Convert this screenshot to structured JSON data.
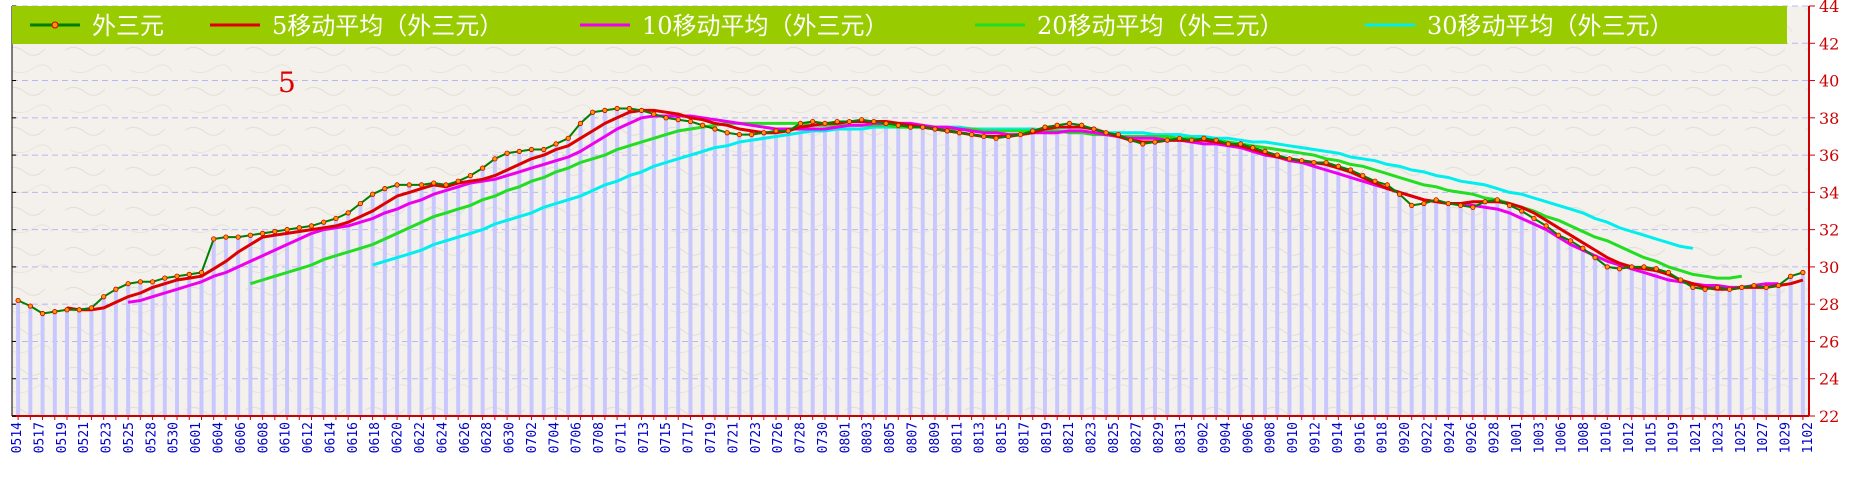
{
  "chart_data": {
    "type": "line",
    "title": "",
    "xlabel": "",
    "ylabel": "",
    "ylim": [
      22,
      44
    ],
    "y_ticks": [
      22,
      24,
      26,
      28,
      30,
      32,
      34,
      36,
      38,
      40,
      42,
      44
    ],
    "grid": true,
    "legend_position": "top",
    "annotation": "5",
    "colors": {
      "legend_bg": "#99cc00",
      "plot_bg": "#f4f1ec",
      "bar": "#c8c8ff",
      "axis": "#cc0000",
      "tick_x": "#0000cc",
      "grid": "#b8b8f0",
      "series": [
        "#008000",
        "#dd0000",
        "#ee00ee",
        "#22dd22",
        "#00eeee"
      ],
      "marker_fill": "#ff9900"
    },
    "x_tick_labels": [
      "0514",
      "0517",
      "0519",
      "0521",
      "0523",
      "0525",
      "0528",
      "0530",
      "0601",
      "0604",
      "0606",
      "0608",
      "0610",
      "0612",
      "0614",
      "0616",
      "0618",
      "0620",
      "0622",
      "0624",
      "0626",
      "0628",
      "0630",
      "0702",
      "0704",
      "0706",
      "0708",
      "0711",
      "0713",
      "0715",
      "0717",
      "0719",
      "0721",
      "0723",
      "0726",
      "0728",
      "0730",
      "0801",
      "0803",
      "0805",
      "0807",
      "0809",
      "0811",
      "0813",
      "0815",
      "0817",
      "0819",
      "0821",
      "0823",
      "0825",
      "0827",
      "0829",
      "0831",
      "0902",
      "0904",
      "0906",
      "0908",
      "0910",
      "0912",
      "0914",
      "0916",
      "0918",
      "0920",
      "0922",
      "0924",
      "0926",
      "0928",
      "1001",
      "1003",
      "1006",
      "1008",
      "1010",
      "1012",
      "1015",
      "1019",
      "1021",
      "1023",
      "1025",
      "1027",
      "1029",
      "1102"
    ],
    "series": [
      {
        "name": "外三元",
        "values": [
          28.2,
          27.9,
          27.5,
          27.6,
          27.7,
          27.7,
          27.8,
          28.4,
          28.8,
          29.1,
          29.2,
          29.2,
          29.4,
          29.5,
          29.6,
          29.7,
          31.5,
          31.6,
          31.6,
          31.7,
          31.8,
          31.9,
          32.0,
          32.1,
          32.2,
          32.4,
          32.6,
          32.9,
          33.4,
          33.9,
          34.2,
          34.4,
          34.4,
          34.4,
          34.5,
          34.4,
          34.6,
          34.9,
          35.3,
          35.8,
          36.1,
          36.2,
          36.3,
          36.3,
          36.6,
          36.9,
          37.7,
          38.3,
          38.4,
          38.5,
          38.5,
          38.4,
          38.2,
          38.0,
          37.9,
          37.8,
          37.6,
          37.4,
          37.2,
          37.1,
          37.1,
          37.2,
          37.3,
          37.3,
          37.7,
          37.8,
          37.7,
          37.8,
          37.8,
          37.9,
          37.8,
          37.7,
          37.6,
          37.5,
          37.5,
          37.4,
          37.3,
          37.2,
          37.1,
          37.0,
          36.9,
          37.0,
          37.1,
          37.3,
          37.5,
          37.6,
          37.7,
          37.6,
          37.4,
          37.2,
          37.1,
          36.8,
          36.6,
          36.7,
          36.8,
          36.9,
          36.8,
          36.9,
          36.8,
          36.6,
          36.6,
          36.4,
          36.2,
          36.0,
          35.8,
          35.7,
          35.6,
          35.6,
          35.4,
          35.2,
          34.9,
          34.6,
          34.4,
          33.9,
          33.3,
          33.4,
          33.6,
          33.4,
          33.3,
          33.2,
          33.5,
          33.6,
          33.3,
          33.0,
          32.6,
          32.2,
          31.7,
          31.4,
          31.0,
          30.5,
          30.0,
          29.9,
          30.0,
          30.0,
          29.9,
          29.7,
          29.3,
          28.9,
          28.8,
          28.9,
          28.8,
          28.9,
          29.0,
          28.9,
          29.0,
          29.5,
          29.7
        ]
      },
      {
        "name": "5移动平均（外三元）",
        "values": [
          null,
          null,
          null,
          null,
          27.8,
          27.7,
          27.7,
          27.8,
          28.1,
          28.4,
          28.6,
          28.9,
          29.1,
          29.3,
          29.4,
          29.5,
          29.9,
          30.3,
          30.8,
          31.2,
          31.6,
          31.7,
          31.8,
          31.9,
          32.0,
          32.1,
          32.2,
          32.4,
          32.7,
          33.0,
          33.4,
          33.8,
          34.0,
          34.2,
          34.4,
          34.3,
          34.5,
          34.6,
          34.7,
          34.9,
          35.2,
          35.5,
          35.8,
          36.0,
          36.3,
          36.5,
          36.9,
          37.3,
          37.7,
          38.0,
          38.3,
          38.4,
          38.4,
          38.3,
          38.2,
          38.0,
          37.9,
          37.7,
          37.6,
          37.4,
          37.3,
          37.2,
          37.2,
          37.3,
          37.5,
          37.6,
          37.7,
          37.7,
          37.8,
          37.8,
          37.8,
          37.8,
          37.7,
          37.6,
          37.5,
          37.4,
          37.3,
          37.2,
          37.1,
          37.0,
          37.0,
          37.0,
          37.1,
          37.2,
          37.4,
          37.5,
          37.5,
          37.5,
          37.4,
          37.2,
          37.0,
          36.8,
          36.7,
          36.7,
          36.8,
          36.8,
          36.8,
          36.8,
          36.7,
          36.6,
          36.5,
          36.3,
          36.1,
          35.9,
          35.8,
          35.7,
          35.6,
          35.5,
          35.3,
          35.1,
          34.8,
          34.5,
          34.2,
          34.0,
          33.8,
          33.6,
          33.5,
          33.4,
          33.4,
          33.5,
          33.5,
          33.5,
          33.4,
          33.2,
          32.9,
          32.5,
          32.1,
          31.7,
          31.3,
          30.9,
          30.5,
          30.2,
          30.0,
          29.9,
          29.8,
          29.6,
          29.3,
          29.1,
          28.9,
          28.8,
          28.8,
          28.9,
          28.9,
          28.9,
          29.0,
          29.1,
          29.3
        ]
      },
      {
        "name": "10移动平均（外三元）",
        "values": [
          null,
          null,
          null,
          null,
          null,
          null,
          null,
          null,
          null,
          28.1,
          28.2,
          28.4,
          28.6,
          28.8,
          29.0,
          29.2,
          29.5,
          29.7,
          30.0,
          30.3,
          30.6,
          30.9,
          31.2,
          31.5,
          31.8,
          32.0,
          32.1,
          32.2,
          32.4,
          32.6,
          32.9,
          33.1,
          33.4,
          33.6,
          33.9,
          34.1,
          34.3,
          34.5,
          34.6,
          34.7,
          34.9,
          35.1,
          35.3,
          35.5,
          35.7,
          35.9,
          36.2,
          36.6,
          37.0,
          37.4,
          37.7,
          38.0,
          38.1,
          38.1,
          38.1,
          38.1,
          38.0,
          37.9,
          37.8,
          37.7,
          37.6,
          37.5,
          37.4,
          37.4,
          37.4,
          37.4,
          37.4,
          37.5,
          37.6,
          37.6,
          37.7,
          37.7,
          37.7,
          37.7,
          37.6,
          37.5,
          37.5,
          37.4,
          37.3,
          37.2,
          37.2,
          37.1,
          37.1,
          37.2,
          37.2,
          37.2,
          37.3,
          37.3,
          37.2,
          37.1,
          37.0,
          36.9,
          36.9,
          36.9,
          36.8,
          36.8,
          36.7,
          36.6,
          36.6,
          36.5,
          36.4,
          36.2,
          36.0,
          35.9,
          35.7,
          35.6,
          35.4,
          35.2,
          35.0,
          34.8,
          34.6,
          34.4,
          34.2,
          34.0,
          33.8,
          33.6,
          33.5,
          33.4,
          33.4,
          33.3,
          33.2,
          33.1,
          32.9,
          32.6,
          32.3,
          32.0,
          31.6,
          31.2,
          30.9,
          30.6,
          30.3,
          30.1,
          29.9,
          29.7,
          29.5,
          29.3,
          29.2,
          29.1,
          29.0,
          29.0,
          28.9,
          28.9,
          29.0,
          29.1,
          29.1
        ]
      },
      {
        "name": "20移动平均（外三元）",
        "values": [
          null,
          null,
          null,
          null,
          null,
          null,
          null,
          null,
          null,
          null,
          null,
          null,
          null,
          null,
          null,
          null,
          null,
          null,
          null,
          29.1,
          29.3,
          29.5,
          29.7,
          29.9,
          30.1,
          30.4,
          30.6,
          30.8,
          31.0,
          31.2,
          31.5,
          31.8,
          32.1,
          32.4,
          32.7,
          32.9,
          33.1,
          33.3,
          33.6,
          33.8,
          34.1,
          34.3,
          34.6,
          34.8,
          35.1,
          35.3,
          35.6,
          35.8,
          36.0,
          36.3,
          36.5,
          36.7,
          36.9,
          37.1,
          37.3,
          37.4,
          37.5,
          37.6,
          37.7,
          37.7,
          37.7,
          37.7,
          37.7,
          37.7,
          37.7,
          37.6,
          37.6,
          37.6,
          37.6,
          37.6,
          37.6,
          37.6,
          37.5,
          37.5,
          37.5,
          37.4,
          37.4,
          37.4,
          37.4,
          37.3,
          37.3,
          37.3,
          37.3,
          37.3,
          37.3,
          37.3,
          37.2,
          37.2,
          37.1,
          37.1,
          37.0,
          37.0,
          37.0,
          37.0,
          37.0,
          36.9,
          36.9,
          36.8,
          36.8,
          36.7,
          36.6,
          36.5,
          36.4,
          36.3,
          36.2,
          36.1,
          36.0,
          35.8,
          35.7,
          35.5,
          35.4,
          35.2,
          35.0,
          34.8,
          34.6,
          34.4,
          34.3,
          34.1,
          34.0,
          33.9,
          33.7,
          33.6,
          33.4,
          33.2,
          33.0,
          32.7,
          32.5,
          32.2,
          31.9,
          31.6,
          31.4,
          31.1,
          30.8,
          30.5,
          30.3,
          30.0,
          29.8,
          29.6,
          29.5,
          29.4,
          29.4,
          29.5
        ]
      },
      {
        "name": "30移动平均（外三元）",
        "values": [
          null,
          null,
          null,
          null,
          null,
          null,
          null,
          null,
          null,
          null,
          null,
          null,
          null,
          null,
          null,
          null,
          null,
          null,
          null,
          null,
          null,
          null,
          null,
          null,
          null,
          null,
          null,
          null,
          null,
          30.1,
          30.3,
          30.5,
          30.7,
          30.9,
          31.2,
          31.4,
          31.6,
          31.8,
          32.0,
          32.3,
          32.5,
          32.7,
          32.9,
          33.2,
          33.4,
          33.6,
          33.8,
          34.1,
          34.4,
          34.6,
          34.9,
          35.1,
          35.4,
          35.6,
          35.8,
          36.0,
          36.2,
          36.4,
          36.5,
          36.7,
          36.8,
          36.9,
          37.0,
          37.1,
          37.2,
          37.3,
          37.3,
          37.4,
          37.4,
          37.4,
          37.5,
          37.5,
          37.5,
          37.5,
          37.5,
          37.5,
          37.5,
          37.5,
          37.4,
          37.4,
          37.4,
          37.4,
          37.4,
          37.4,
          37.3,
          37.3,
          37.3,
          37.3,
          37.2,
          37.2,
          37.2,
          37.2,
          37.2,
          37.1,
          37.1,
          37.1,
          37.0,
          37.0,
          36.9,
          36.9,
          36.8,
          36.7,
          36.7,
          36.6,
          36.5,
          36.4,
          36.3,
          36.2,
          36.1,
          35.9,
          35.8,
          35.7,
          35.5,
          35.4,
          35.2,
          35.1,
          34.9,
          34.8,
          34.6,
          34.5,
          34.4,
          34.2,
          34.0,
          33.9,
          33.7,
          33.5,
          33.3,
          33.1,
          32.9,
          32.6,
          32.4,
          32.1,
          31.9,
          31.7,
          31.5,
          31.3,
          31.1,
          31.0
        ]
      }
    ]
  }
}
